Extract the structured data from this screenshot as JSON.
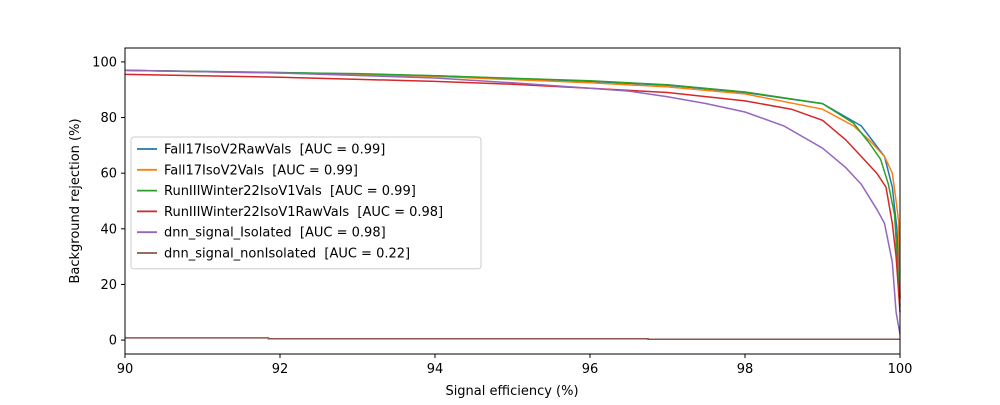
{
  "chart_data": {
    "type": "line",
    "title": "",
    "xlabel": "Signal efficiency (%)",
    "ylabel": "Background rejection (%)",
    "xlim": [
      90,
      100
    ],
    "ylim": [
      -5,
      105
    ],
    "xticks": [
      90,
      92,
      94,
      96,
      98,
      100
    ],
    "yticks": [
      0,
      20,
      40,
      60,
      80,
      100
    ],
    "grid": false,
    "legend_position": "center-left",
    "series": [
      {
        "name": "Fall17IsoV2RawVals  [AUC = 0.99]",
        "color": "#1f77b4",
        "points": [
          [
            90,
            97
          ],
          [
            92,
            96.2
          ],
          [
            94,
            95
          ],
          [
            96,
            93
          ],
          [
            97,
            91.6
          ],
          [
            98,
            89
          ],
          [
            99,
            85
          ],
          [
            99.5,
            77
          ],
          [
            99.8,
            66
          ],
          [
            99.9,
            55
          ],
          [
            99.96,
            40
          ],
          [
            100,
            15
          ]
        ]
      },
      {
        "name": "Fall17IsoV2Vals  [AUC = 0.99]",
        "color": "#ff7f0e",
        "points": [
          [
            90,
            97
          ],
          [
            92,
            96
          ],
          [
            94,
            94.8
          ],
          [
            96,
            92.5
          ],
          [
            97,
            91
          ],
          [
            98,
            88.5
          ],
          [
            99,
            83
          ],
          [
            99.4,
            77
          ],
          [
            99.6,
            72
          ],
          [
            99.8,
            66
          ],
          [
            99.9,
            60
          ],
          [
            99.95,
            50
          ],
          [
            99.98,
            43
          ],
          [
            100,
            15
          ]
        ]
      },
      {
        "name": "RunIIIWinter22IsoV1Vals  [AUC = 0.99]",
        "color": "#2ca02c",
        "points": [
          [
            90,
            97
          ],
          [
            92,
            96.1
          ],
          [
            93,
            95.8
          ],
          [
            94,
            95
          ],
          [
            96,
            93.2
          ],
          [
            97,
            91.8
          ],
          [
            98,
            89.2
          ],
          [
            99,
            85
          ],
          [
            99.4,
            78
          ],
          [
            99.6,
            71
          ],
          [
            99.75,
            65
          ],
          [
            99.85,
            56
          ],
          [
            99.93,
            45
          ],
          [
            100,
            12
          ]
        ]
      },
      {
        "name": "RunIIIWinter22IsoV1RawVals  [AUC = 0.98]",
        "color": "#d62728",
        "points": [
          [
            90,
            95.5
          ],
          [
            92,
            94.5
          ],
          [
            94,
            93
          ],
          [
            95,
            92
          ],
          [
            96,
            90.5
          ],
          [
            97,
            89
          ],
          [
            98,
            86
          ],
          [
            98.6,
            83
          ],
          [
            99,
            79
          ],
          [
            99.3,
            72
          ],
          [
            99.5,
            66
          ],
          [
            99.7,
            60
          ],
          [
            99.82,
            55
          ],
          [
            99.9,
            42
          ],
          [
            99.95,
            30
          ],
          [
            100,
            10
          ]
        ]
      },
      {
        "name": "dnn_signal_Isolated  [AUC = 0.98]",
        "color": "#9467bd",
        "points": [
          [
            90,
            97
          ],
          [
            92,
            96
          ],
          [
            94,
            94.2
          ],
          [
            95,
            92.5
          ],
          [
            96,
            90.5
          ],
          [
            96.5,
            89.5
          ],
          [
            97,
            87.5
          ],
          [
            97.5,
            85
          ],
          [
            98,
            82
          ],
          [
            98.5,
            77
          ],
          [
            99,
            69
          ],
          [
            99.3,
            62
          ],
          [
            99.5,
            56
          ],
          [
            99.7,
            47
          ],
          [
            99.8,
            42
          ],
          [
            99.85,
            35
          ],
          [
            99.9,
            28
          ],
          [
            99.95,
            10
          ],
          [
            100,
            2
          ]
        ]
      },
      {
        "name": "dnn_signal_nonIsolated  [AUC = 0.22]",
        "color": "#8c564b",
        "points": [
          [
            90,
            0.8
          ],
          [
            91.85,
            0.8
          ],
          [
            91.85,
            0.5
          ],
          [
            96.75,
            0.5
          ],
          [
            96.75,
            0.3
          ],
          [
            100,
            0.3
          ]
        ]
      }
    ]
  }
}
